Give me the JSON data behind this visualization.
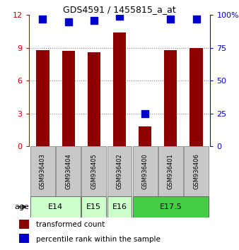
{
  "title": "GDS4591 / 1455815_a_at",
  "samples": [
    "GSM936403",
    "GSM936404",
    "GSM936405",
    "GSM936402",
    "GSM936400",
    "GSM936401",
    "GSM936406"
  ],
  "transformed_counts": [
    8.8,
    8.7,
    8.6,
    10.4,
    1.8,
    8.8,
    9.0
  ],
  "percentile_ranks": [
    97,
    95,
    96,
    99,
    25,
    97,
    97
  ],
  "ylim_left": [
    0,
    12
  ],
  "ylim_right": [
    0,
    100
  ],
  "yticks_left": [
    0,
    3,
    6,
    9,
    12
  ],
  "yticks_right": [
    0,
    25,
    50,
    75,
    100
  ],
  "bar_color": "#8B0000",
  "dot_color": "#0000CC",
  "age_groups": [
    {
      "label": "E14",
      "samples": [
        "GSM936403",
        "GSM936404"
      ],
      "color": "#CCFFCC"
    },
    {
      "label": "E15",
      "samples": [
        "GSM936405"
      ],
      "color": "#CCFFCC"
    },
    {
      "label": "E16",
      "samples": [
        "GSM936402"
      ],
      "color": "#CCFFCC"
    },
    {
      "label": "E17.5",
      "samples": [
        "GSM936400",
        "GSM936401",
        "GSM936406"
      ],
      "color": "#44CC44"
    }
  ],
  "legend_items": [
    {
      "label": "transformed count",
      "color": "#8B0000"
    },
    {
      "label": "percentile rank within the sample",
      "color": "#0000CC"
    }
  ],
  "age_label": "age",
  "left_axis_color": "#CC0000",
  "right_axis_color": "#0000CC",
  "bar_width": 0.5,
  "dot_size": 55,
  "gridline_color": "#888888",
  "sample_box_color": "#C8C8C8",
  "sample_box_edge": "#888888"
}
